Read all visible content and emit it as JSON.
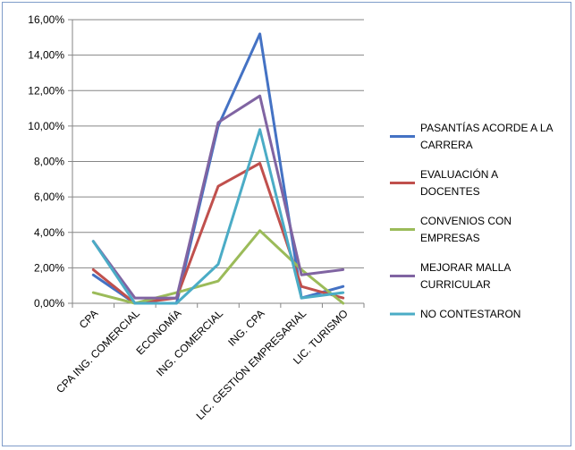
{
  "chart_data": {
    "type": "line",
    "categories": [
      "CPA",
      "CPA ING. COMERCIAL",
      "ECONOMÍA",
      "ING. COMERCIAL",
      "ING. CPA",
      "LIC. GESTIÓN EMPRESARIAL",
      "LIC. TURISMO"
    ],
    "ylim": [
      0,
      16
    ],
    "ytick_step": 2,
    "ytick_labels": [
      "0,00%",
      "2,00%",
      "4,00%",
      "6,00%",
      "8,00%",
      "10,00%",
      "12,00%",
      "14,00%",
      "16,00%"
    ],
    "grid": true,
    "legend_position": "right",
    "series": [
      {
        "name": "PASANTÍAS ACORDE A LA CARRERA",
        "legend_lines": [
          "PASANTÍAS ACORDE A LA",
          "CARRERA"
        ],
        "color": "#4472c4",
        "values": [
          1.6,
          0.0,
          0.0,
          10.0,
          15.2,
          0.3,
          0.95
        ]
      },
      {
        "name": "EVALUACIÓN A DOCENTES",
        "legend_lines": [
          "EVALUACIÓN A",
          "DOCENTES"
        ],
        "color": "#c0504d",
        "values": [
          1.9,
          0.0,
          0.3,
          6.6,
          7.9,
          0.95,
          0.3
        ]
      },
      {
        "name": "CONVENIOS CON EMPRESAS",
        "legend_lines": [
          "CONVENIOS CON",
          "EMPRESAS"
        ],
        "color": "#9bbb59",
        "values": [
          0.6,
          0.0,
          0.6,
          1.25,
          4.1,
          1.9,
          0.0
        ]
      },
      {
        "name": "MEJORAR MALLA CURRICULAR",
        "legend_lines": [
          "MEJORAR MALLA",
          "CURRICULAR"
        ],
        "color": "#8064a2",
        "values": [
          3.5,
          0.3,
          0.3,
          10.2,
          11.7,
          1.6,
          1.9
        ]
      },
      {
        "name": "NO CONTESTARON",
        "legend_lines": [
          "NO CONTESTARON"
        ],
        "color": "#4bacc6",
        "values": [
          3.5,
          0.0,
          0.0,
          2.2,
          9.8,
          0.3,
          0.6
        ]
      }
    ]
  }
}
